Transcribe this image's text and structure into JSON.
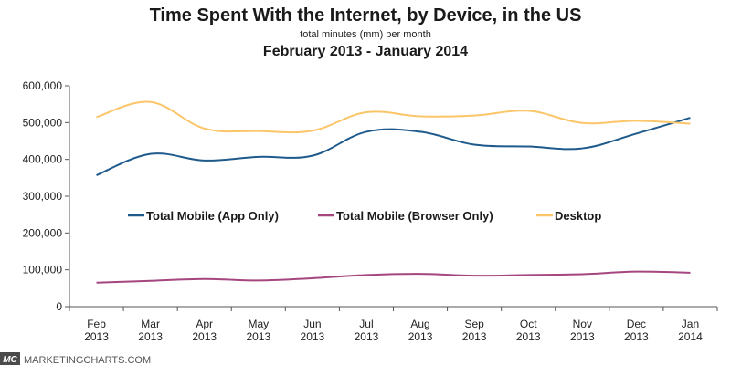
{
  "chart_data": {
    "type": "line",
    "title": "Time Spent With the Internet, by Device, in the US",
    "subtitle": "total minutes (mm) per month",
    "period": "February 2013 - January 2014",
    "xlabel": "",
    "ylabel": "",
    "ylim": [
      0,
      600000
    ],
    "yticks": [
      "0",
      "100,000",
      "200,000",
      "300,000",
      "400,000",
      "500,000",
      "600,000"
    ],
    "ytick_values": [
      0,
      100000,
      200000,
      300000,
      400000,
      500000,
      600000
    ],
    "categories": [
      {
        "month": "Feb",
        "year": "2013"
      },
      {
        "month": "Mar",
        "year": "2013"
      },
      {
        "month": "Apr",
        "year": "2013"
      },
      {
        "month": "May",
        "year": "2013"
      },
      {
        "month": "Jun",
        "year": "2013"
      },
      {
        "month": "Jul",
        "year": "2013"
      },
      {
        "month": "Aug",
        "year": "2013"
      },
      {
        "month": "Sep",
        "year": "2013"
      },
      {
        "month": "Oct",
        "year": "2013"
      },
      {
        "month": "Nov",
        "year": "2013"
      },
      {
        "month": "Dec",
        "year": "2013"
      },
      {
        "month": "Jan",
        "year": "2014"
      }
    ],
    "series": [
      {
        "name": "Total Mobile (App Only)",
        "color": "#1f5a8c",
        "values": [
          357000,
          415000,
          397000,
          407000,
          410000,
          475000,
          475000,
          440000,
          435000,
          430000,
          470000,
          513000
        ]
      },
      {
        "name": "Total Mobile (Browser Only)",
        "color": "#a5467f",
        "values": [
          65000,
          70000,
          75000,
          71000,
          77000,
          86000,
          89000,
          84000,
          86000,
          88000,
          95000,
          92000
        ]
      },
      {
        "name": "Desktop",
        "color": "#fbc56a",
        "values": [
          515000,
          556000,
          484000,
          477000,
          478000,
          528000,
          517000,
          519000,
          532000,
          499000,
          505000,
          497000
        ]
      }
    ],
    "grid": false,
    "legend": "inside-center"
  },
  "footer": {
    "logo_text": "MC",
    "source": "MARKETINGCHARTS.COM"
  }
}
